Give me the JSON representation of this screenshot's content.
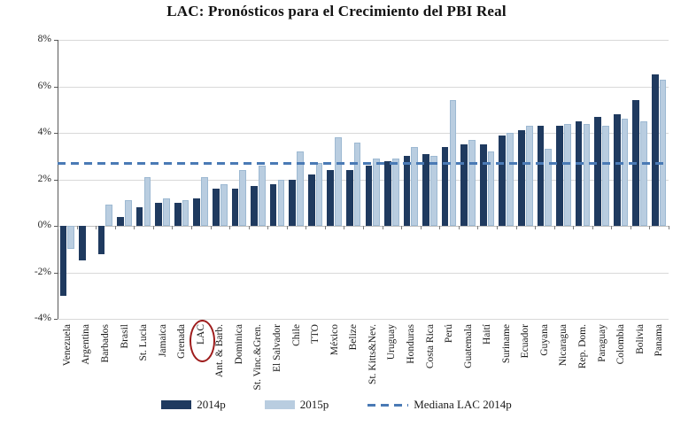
{
  "title": "LAC: Pronósticos para el Crecimiento del PBI Real",
  "chart_data": {
    "type": "bar",
    "categories": [
      "Venezuela",
      "Argentina",
      "Barbados",
      "Brasil",
      "St. Lucia",
      "Jamaica",
      "Grenada",
      "LAC",
      "Ant. & Barb.",
      "Dominica",
      "St. Vinc.&Gren.",
      "El Salvador",
      "Chile",
      "TTO",
      "México",
      "Belize",
      "St. Kitts&Nev.",
      "Uruguay",
      "Honduras",
      "Costa Rica",
      "Perú",
      "Guatemala",
      "Haití",
      "Suriname",
      "Ecuador",
      "Guyana",
      "Nicaragua",
      "Rep. Dom.",
      "Paraguay",
      "Colombia",
      "Bolivia",
      "Panama"
    ],
    "series": [
      {
        "name": "2014p",
        "color": "#1f3a5f",
        "values": [
          -3.0,
          -1.5,
          -1.2,
          0.4,
          0.8,
          1.0,
          1.0,
          1.2,
          1.6,
          1.6,
          1.7,
          1.8,
          2.0,
          2.2,
          2.4,
          2.4,
          2.6,
          2.8,
          3.0,
          3.1,
          3.4,
          3.5,
          3.5,
          3.9,
          4.1,
          4.3,
          4.3,
          4.5,
          4.7,
          4.8,
          5.4,
          6.5
        ]
      },
      {
        "name": "2015p",
        "color": "#b9cde0",
        "values": [
          -1.0,
          0.0,
          0.9,
          1.1,
          2.1,
          1.2,
          1.1,
          2.1,
          1.8,
          2.4,
          2.6,
          2.0,
          3.2,
          2.7,
          3.8,
          3.6,
          2.9,
          2.9,
          3.4,
          3.0,
          5.4,
          3.7,
          3.2,
          4.0,
          4.3,
          3.3,
          4.4,
          4.4,
          4.3,
          4.6,
          4.5,
          6.3
        ]
      }
    ],
    "median_line": {
      "label": "Mediana LAC 2014p",
      "value": 2.7,
      "color": "#4a7ab5",
      "style": "dashed"
    },
    "ylim": [
      -4,
      8
    ],
    "ytick_values": [
      8,
      6,
      4,
      2,
      0,
      -2,
      -4
    ],
    "ytick_labels": [
      "8%",
      "6%",
      "4%",
      "2%",
      "0%",
      "-2%",
      "-4%"
    ],
    "grid": true,
    "legend_position": "bottom",
    "highlighted_category": "LAC",
    "highlight_color": "#9e1c1c"
  }
}
